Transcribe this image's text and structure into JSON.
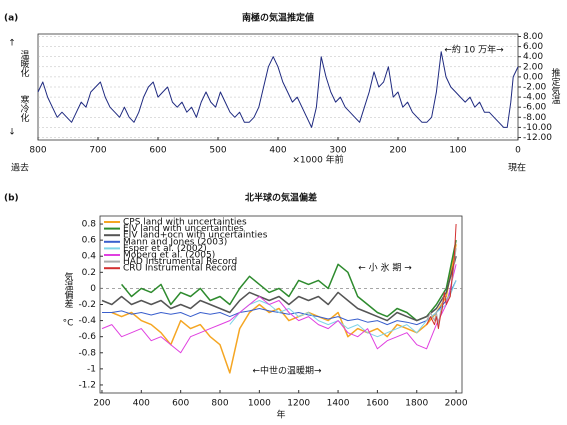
{
  "chart_data": [
    {
      "type": "line",
      "panel": "(a)",
      "title": "南極の気温推定値",
      "annotations": [
        "↑",
        "温暖化",
        "寒冷化",
        "↓",
        "推定気温",
        "過去",
        "現在",
        "←約 10 万年→"
      ],
      "x_label": "×1000 年前",
      "x": [
        800,
        792,
        784,
        776,
        768,
        760,
        752,
        744,
        736,
        728,
        720,
        712,
        704,
        696,
        688,
        680,
        672,
        664,
        656,
        648,
        640,
        632,
        624,
        616,
        608,
        600,
        592,
        584,
        576,
        568,
        560,
        552,
        544,
        536,
        528,
        520,
        512,
        504,
        496,
        488,
        480,
        472,
        464,
        456,
        448,
        440,
        432,
        424,
        416,
        408,
        400,
        392,
        384,
        376,
        368,
        360,
        352,
        344,
        336,
        328,
        320,
        312,
        304,
        296,
        288,
        280,
        272,
        264,
        256,
        248,
        240,
        232,
        224,
        216,
        208,
        200,
        192,
        184,
        176,
        168,
        160,
        152,
        144,
        136,
        128,
        120,
        112,
        104,
        96,
        88,
        80,
        72,
        64,
        56,
        48,
        40,
        32,
        24,
        18,
        12,
        8,
        4,
        0
      ],
      "values": [
        -3,
        -1,
        -4,
        -6,
        -8,
        -7,
        -8,
        -9,
        -7,
        -5,
        -6,
        -3,
        -2,
        -1,
        -4,
        -6,
        -7,
        -8,
        -6,
        -8,
        -9,
        -7,
        -4,
        -2,
        -1,
        -4,
        -3,
        -2,
        -5,
        -6,
        -5,
        -7,
        -6,
        -8,
        -5,
        -3,
        -5,
        -6,
        -3,
        -5,
        -7,
        -8,
        -7,
        -9,
        -9,
        -8,
        -6,
        -2,
        2,
        4,
        2,
        -1,
        -3,
        -5,
        -4,
        -6,
        -8,
        -10,
        -6,
        4,
        0,
        -3,
        -5,
        -4,
        -6,
        -7,
        -8,
        -9,
        -6,
        -3,
        1,
        -2,
        -1,
        2,
        -4,
        -3,
        -6,
        -5,
        -7,
        -8,
        -9,
        -9,
        -8,
        -3,
        5,
        0,
        -2,
        -3,
        -4,
        -5,
        -4,
        -6,
        -5,
        -7,
        -7,
        -8,
        -9,
        -10,
        -10,
        -5,
        0,
        1,
        2
      ],
      "color": "#1f2a80",
      "xlim": [
        800,
        0
      ],
      "xticks": [
        800,
        700,
        600,
        500,
        400,
        300,
        200,
        100,
        0
      ],
      "ylim": [
        -12.5,
        8.5
      ],
      "yticks": [
        {
          "value": 8,
          "label": "8.00"
        },
        {
          "value": 6,
          "label": "6.00"
        },
        {
          "value": 4,
          "label": "4.00"
        },
        {
          "value": 2,
          "label": "2.00"
        },
        {
          "value": 0,
          "label": "0.00"
        },
        {
          "value": -2,
          "label": "-2.00"
        },
        {
          "value": -4,
          "label": "-4.00"
        },
        {
          "value": -6,
          "label": "-6.00"
        },
        {
          "value": -8,
          "label": "-8.00"
        },
        {
          "value": -10,
          "label": "-10.00"
        },
        {
          "value": -12,
          "label": "-12.00"
        }
      ],
      "grid": true
    },
    {
      "type": "line",
      "panel": "(b)",
      "title": "北半球の気温偏差",
      "y_label": "気温偏差",
      "y_unit": "°C",
      "x_label": "年",
      "annotations": [
        "← 小 氷 期 →",
        "←中世の温暖期→"
      ],
      "x": [
        200,
        250,
        300,
        350,
        400,
        450,
        500,
        550,
        600,
        650,
        700,
        750,
        800,
        850,
        900,
        950,
        1000,
        1050,
        1100,
        1150,
        1200,
        1250,
        1300,
        1350,
        1400,
        1450,
        1500,
        1550,
        1600,
        1650,
        1700,
        1750,
        1800,
        1850,
        1900,
        1950,
        2000
      ],
      "series": [
        {
          "name": "CPS land with uncertainties",
          "color": "#f5a623",
          "values": [
            null,
            -0.3,
            -0.35,
            -0.3,
            -0.4,
            -0.45,
            -0.55,
            -0.7,
            -0.4,
            -0.5,
            -0.45,
            -0.6,
            -0.7,
            -1.05,
            -0.5,
            -0.3,
            -0.2,
            -0.3,
            -0.25,
            -0.4,
            -0.35,
            -0.3,
            -0.35,
            -0.4,
            -0.3,
            -0.6,
            -0.5,
            -0.55,
            -0.5,
            -0.6,
            -0.45,
            -0.5,
            -0.55,
            -0.45,
            -0.3,
            -0.1,
            0.55
          ]
        },
        {
          "name": "EIV land with uncertainties",
          "color": "#2e8b2e",
          "values": [
            null,
            null,
            0.05,
            -0.1,
            0.0,
            -0.05,
            0.05,
            -0.2,
            -0.05,
            -0.1,
            0.0,
            -0.15,
            -0.1,
            -0.2,
            0.0,
            0.15,
            0.05,
            -0.05,
            0.0,
            -0.1,
            0.1,
            0.05,
            0.1,
            0.0,
            0.3,
            0.2,
            -0.1,
            -0.2,
            -0.3,
            -0.35,
            -0.25,
            -0.3,
            -0.4,
            -0.35,
            -0.2,
            0.0,
            0.6
          ]
        },
        {
          "name": "EIV land+ocn with uncertainties",
          "color": "#555555",
          "values": [
            -0.15,
            -0.2,
            -0.1,
            -0.2,
            -0.15,
            -0.2,
            -0.15,
            -0.25,
            -0.2,
            -0.25,
            -0.15,
            -0.2,
            -0.25,
            -0.3,
            -0.15,
            -0.05,
            -0.1,
            -0.15,
            -0.1,
            -0.2,
            -0.1,
            -0.15,
            -0.1,
            -0.2,
            -0.05,
            -0.15,
            -0.25,
            -0.3,
            -0.35,
            -0.4,
            -0.3,
            -0.35,
            -0.4,
            -0.35,
            -0.25,
            -0.05,
            0.4
          ]
        },
        {
          "name": "Mann and Jones (2003)",
          "color": "#3a5fcd",
          "values": [
            -0.3,
            -0.3,
            -0.28,
            -0.32,
            -0.3,
            -0.33,
            -0.3,
            -0.32,
            -0.3,
            -0.35,
            -0.3,
            -0.32,
            -0.3,
            -0.35,
            -0.3,
            -0.28,
            -0.25,
            -0.28,
            -0.3,
            -0.32,
            -0.3,
            -0.33,
            -0.35,
            -0.38,
            -0.35,
            -0.4,
            -0.38,
            -0.42,
            -0.4,
            -0.45,
            -0.4,
            -0.42,
            -0.45,
            -0.4,
            -0.3,
            -0.15,
            0.1
          ]
        },
        {
          "name": "Esper et al. (2002)",
          "color": "#7fd4e8",
          "values": [
            null,
            null,
            null,
            null,
            null,
            null,
            null,
            null,
            null,
            null,
            null,
            null,
            null,
            -0.45,
            -0.3,
            -0.2,
            -0.15,
            -0.2,
            -0.3,
            -0.25,
            -0.35,
            -0.3,
            -0.4,
            -0.45,
            -0.4,
            -0.5,
            -0.45,
            -0.55,
            -0.6,
            -0.55,
            -0.5,
            -0.45,
            -0.55,
            -0.4,
            -0.3,
            -0.2,
            0.1
          ]
        },
        {
          "name": "Moberg et al. (2005)",
          "color": "#e040e0",
          "values": [
            -0.5,
            -0.45,
            -0.6,
            -0.55,
            -0.5,
            -0.65,
            -0.6,
            -0.7,
            -0.8,
            -0.6,
            -0.55,
            -0.5,
            -0.45,
            -0.4,
            -0.3,
            -0.2,
            -0.1,
            -0.2,
            -0.15,
            -0.3,
            -0.4,
            -0.35,
            -0.45,
            -0.5,
            -0.4,
            -0.55,
            -0.6,
            -0.5,
            -0.75,
            -0.65,
            -0.6,
            -0.55,
            -0.7,
            -0.75,
            -0.45,
            -0.2,
            0.3
          ]
        },
        {
          "name": "HAD Instrumental Record",
          "color": "#aaaaaa",
          "x": [
            1850,
            1860,
            1870,
            1880,
            1890,
            1900,
            1910,
            1920,
            1930,
            1940,
            1950,
            1960,
            1970,
            1980,
            1990,
            2000
          ],
          "values": [
            -0.4,
            -0.35,
            -0.3,
            -0.35,
            -0.4,
            -0.3,
            -0.45,
            -0.3,
            -0.2,
            -0.05,
            -0.15,
            -0.1,
            -0.1,
            0.1,
            0.3,
            0.5
          ]
        },
        {
          "name": "CRU Instrumental Record",
          "color": "#d32f2f",
          "x": [
            1850,
            1860,
            1870,
            1880,
            1890,
            1900,
            1910,
            1920,
            1930,
            1940,
            1950,
            1960,
            1970,
            1980,
            1990,
            2000
          ],
          "values": [
            -0.45,
            -0.4,
            -0.35,
            -0.4,
            -0.45,
            -0.35,
            -0.5,
            -0.35,
            -0.25,
            -0.05,
            -0.2,
            -0.15,
            -0.1,
            0.15,
            0.35,
            0.8
          ]
        }
      ],
      "xlim": [
        190,
        2030
      ],
      "xticks": [
        200,
        400,
        600,
        800,
        1000,
        1200,
        1400,
        1600,
        1800,
        2000
      ],
      "ylim": [
        -1.3,
        0.9
      ],
      "yticks": [
        0.8,
        0.6,
        0.4,
        0.2,
        0,
        -0.2,
        -0.4,
        -0.6,
        -0.8,
        -1,
        -1.2
      ],
      "zero_line": true
    }
  ]
}
